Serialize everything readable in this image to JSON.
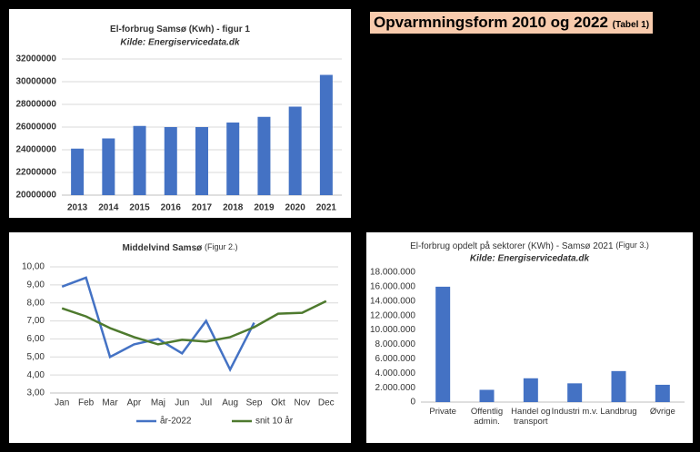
{
  "chart_data": [
    {
      "type": "bar",
      "title": "El-forbrug Samsø (Kwh) - figur 1",
      "subtitle": "Kilde: Energiservicedata.dk",
      "categories": [
        "2013",
        "2014",
        "2015",
        "2016",
        "2017",
        "2018",
        "2019",
        "2020",
        "2021"
      ],
      "values": [
        24100000,
        25000000,
        26100000,
        26000000,
        26000000,
        26400000,
        26900000,
        27800000,
        30600000
      ],
      "color": "#4472c4",
      "ylim": [
        20000000,
        32000000
      ],
      "yticks": [
        20000000,
        22000000,
        24000000,
        26000000,
        28000000,
        30000000,
        32000000
      ],
      "grid": true
    },
    {
      "type": "line",
      "title": "Middelvind Samsø",
      "figure_note": "(Figur 2.)",
      "categories": [
        "Jan",
        "Feb",
        "Mar",
        "Apr",
        "Maj",
        "Jun",
        "Jul",
        "Aug",
        "Sep",
        "Okt",
        "Nov",
        "Dec"
      ],
      "series": [
        {
          "name": "år-2022",
          "color": "#4472c4",
          "values": [
            8.9,
            9.4,
            5.0,
            5.7,
            6.0,
            5.2,
            7.0,
            4.3,
            6.9,
            null,
            null,
            null
          ]
        },
        {
          "name": "snit 10 år",
          "color": "#4e7a2e",
          "values": [
            7.7,
            7.25,
            6.6,
            6.1,
            5.7,
            5.95,
            5.85,
            6.1,
            6.65,
            7.4,
            7.45,
            8.1
          ]
        }
      ],
      "ylim": [
        3,
        10
      ],
      "yticks": [
        {
          "value": 3,
          "label": "3,00"
        },
        {
          "value": 4,
          "label": "4,00"
        },
        {
          "value": 5,
          "label": "5,00"
        },
        {
          "value": 6,
          "label": "6,00"
        },
        {
          "value": 7,
          "label": "7,00"
        },
        {
          "value": 8,
          "label": "8,00"
        },
        {
          "value": 9,
          "label": "9,00"
        },
        {
          "value": 10,
          "label": "10,00"
        }
      ],
      "grid": true,
      "legend": "bottom"
    },
    {
      "type": "bar",
      "title": "El-forbrug opdelt på sektorer (KWh) - Samsø 2021",
      "figure_note": "(Figur 3.)",
      "subtitle": "Kilde: Energiservicedata.dk",
      "categories": [
        "Private",
        "Offentlig admin.",
        "Handel og transport",
        "Industri m.v.",
        "Landbrug",
        "Øvrige"
      ],
      "values": [
        16000000,
        1700000,
        3300000,
        2600000,
        4300000,
        2400000
      ],
      "color": "#4472c4",
      "ylim": [
        0,
        18000000
      ],
      "yticks": [
        {
          "value": 0,
          "label": "0"
        },
        {
          "value": 2000000,
          "label": "2.000.000"
        },
        {
          "value": 4000000,
          "label": "4.000.000"
        },
        {
          "value": 6000000,
          "label": "6.000.000"
        },
        {
          "value": 8000000,
          "label": "8.000.000"
        },
        {
          "value": 10000000,
          "label": "10.000.000"
        },
        {
          "value": 12000000,
          "label": "12.000.000"
        },
        {
          "value": 14000000,
          "label": "14.000.000"
        },
        {
          "value": 16000000,
          "label": "16.000.000"
        },
        {
          "value": 18000000,
          "label": "18.000.000"
        }
      ],
      "grid": false
    }
  ],
  "table": {
    "title": "Opvarmningsform 2010 og 2022",
    "note": "(Tabel 1)"
  }
}
